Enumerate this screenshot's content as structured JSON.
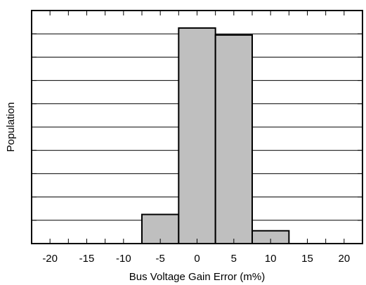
{
  "chart_data": {
    "type": "bar",
    "title": "",
    "xlabel": "Bus Voltage Gain Error (m%)",
    "ylabel": "Population",
    "xlim": [
      -22.5,
      22.5
    ],
    "ylim": [
      0,
      10
    ],
    "x_ticks": [
      -20,
      -15,
      -10,
      -5,
      0,
      5,
      10,
      15,
      20
    ],
    "x_tick_labels": [
      "-20",
      "-15",
      "-10",
      "-5",
      "0",
      "5",
      "10",
      "15",
      "20"
    ],
    "y_tick_labels": [],
    "bin_edges": [
      -7.5,
      -2.5,
      2.5,
      7.5,
      12.5
    ],
    "values": [
      1.25,
      9.25,
      8.95,
      0.55
    ],
    "grid": "horizontal",
    "bar_color": "#bfbfbf",
    "edge_color": "#000000"
  }
}
